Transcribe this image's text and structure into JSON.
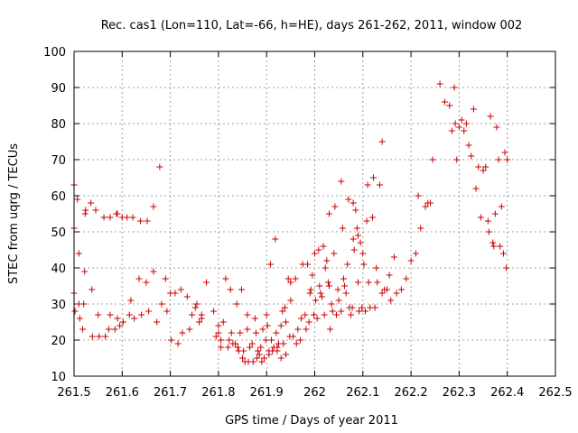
{
  "chart_data": {
    "type": "scatter",
    "title": "Rec. cas1 (Lon=110, Lat=-66, h=HE), days 261-262, 2011, window 002",
    "xlabel": "GPS time / Days of year 2011",
    "ylabel": "STEC from uqrg / TECUs",
    "xlim": [
      261.5,
      262.5
    ],
    "ylim": [
      10,
      100
    ],
    "xticks": [
      261.5,
      261.6,
      261.7,
      261.8,
      261.9,
      262.0,
      262.1,
      262.2,
      262.3,
      262.4,
      262.5
    ],
    "xtick_labels": [
      "261.5",
      "261.6",
      "261.7",
      "261.8",
      "261.9",
      "262",
      "262.1",
      "262.2",
      "262.3",
      "262.4",
      "262.5"
    ],
    "yticks": [
      10,
      20,
      30,
      40,
      50,
      60,
      70,
      80,
      90,
      100
    ],
    "ytick_labels": [
      "10",
      "20",
      "30",
      "40",
      "50",
      "60",
      "70",
      "80",
      "90",
      "100"
    ],
    "grid": true,
    "marker": "+",
    "color": "#cc0000",
    "series": [
      {
        "name": "STEC",
        "points": [
          [
            261.5,
            63
          ],
          [
            261.5,
            51
          ],
          [
            261.5,
            33
          ],
          [
            261.502,
            28
          ],
          [
            261.507,
            59
          ],
          [
            261.51,
            44
          ],
          [
            261.512,
            26
          ],
          [
            261.51,
            30
          ],
          [
            261.518,
            23
          ],
          [
            261.52,
            30
          ],
          [
            261.522,
            39
          ],
          [
            261.523,
            55
          ],
          [
            261.524,
            56
          ],
          [
            261.535,
            58
          ],
          [
            261.537,
            34
          ],
          [
            261.538,
            21
          ],
          [
            261.545,
            56
          ],
          [
            261.55,
            27
          ],
          [
            261.552,
            21
          ],
          [
            261.562,
            54
          ],
          [
            261.565,
            21
          ],
          [
            261.572,
            23
          ],
          [
            261.575,
            54
          ],
          [
            261.575,
            27
          ],
          [
            261.585,
            23
          ],
          [
            261.59,
            26
          ],
          [
            261.588,
            55
          ],
          [
            261.59,
            55
          ],
          [
            261.595,
            24
          ],
          [
            261.6,
            54
          ],
          [
            261.602,
            25
          ],
          [
            261.61,
            54
          ],
          [
            261.615,
            27
          ],
          [
            261.618,
            31
          ],
          [
            261.622,
            54
          ],
          [
            261.625,
            26
          ],
          [
            261.635,
            37
          ],
          [
            261.638,
            53
          ],
          [
            261.64,
            27
          ],
          [
            261.65,
            36
          ],
          [
            261.652,
            53
          ],
          [
            261.655,
            28
          ],
          [
            261.665,
            57
          ],
          [
            261.665,
            39
          ],
          [
            261.672,
            25
          ],
          [
            261.678,
            68
          ],
          [
            261.682,
            30
          ],
          [
            261.69,
            37
          ],
          [
            261.693,
            28
          ],
          [
            261.7,
            33
          ],
          [
            261.702,
            20
          ],
          [
            261.71,
            33
          ],
          [
            261.716,
            19
          ],
          [
            261.722,
            34
          ],
          [
            261.725,
            22
          ],
          [
            261.735,
            32
          ],
          [
            261.74,
            23
          ],
          [
            261.745,
            27
          ],
          [
            261.752,
            29
          ],
          [
            261.755,
            30
          ],
          [
            261.76,
            25
          ],
          [
            261.765,
            26
          ],
          [
            261.765,
            27
          ],
          [
            261.775,
            36
          ],
          [
            261.79,
            28
          ],
          [
            261.795,
            21
          ],
          [
            261.8,
            22
          ],
          [
            261.8,
            24
          ],
          [
            261.805,
            20
          ],
          [
            261.805,
            18
          ],
          [
            261.81,
            25
          ],
          [
            261.815,
            37
          ],
          [
            261.82,
            18
          ],
          [
            261.822,
            20
          ],
          [
            261.825,
            34
          ],
          [
            261.827,
            22
          ],
          [
            261.83,
            19
          ],
          [
            261.835,
            19
          ],
          [
            261.838,
            30
          ],
          [
            261.84,
            18
          ],
          [
            261.842,
            17
          ],
          [
            261.845,
            22
          ],
          [
            261.848,
            34
          ],
          [
            261.85,
            15
          ],
          [
            261.852,
            17
          ],
          [
            261.855,
            14
          ],
          [
            261.86,
            23
          ],
          [
            261.86,
            27
          ],
          [
            261.862,
            14
          ],
          [
            261.865,
            18
          ],
          [
            261.87,
            19
          ],
          [
            261.872,
            14
          ],
          [
            261.876,
            26
          ],
          [
            261.878,
            22
          ],
          [
            261.88,
            15
          ],
          [
            261.882,
            17
          ],
          [
            261.885,
            16
          ],
          [
            261.888,
            18
          ],
          [
            261.89,
            14
          ],
          [
            261.892,
            23
          ],
          [
            261.895,
            15
          ],
          [
            261.898,
            20
          ],
          [
            261.9,
            27
          ],
          [
            261.902,
            24
          ],
          [
            261.905,
            16
          ],
          [
            261.905,
            17
          ],
          [
            261.908,
            41
          ],
          [
            261.91,
            20
          ],
          [
            261.912,
            17
          ],
          [
            261.915,
            18
          ],
          [
            261.918,
            48
          ],
          [
            261.92,
            22
          ],
          [
            261.922,
            17
          ],
          [
            261.922,
            18
          ],
          [
            261.925,
            19
          ],
          [
            261.93,
            15
          ],
          [
            261.93,
            24
          ],
          [
            261.933,
            28
          ],
          [
            261.935,
            19
          ],
          [
            261.938,
            29
          ],
          [
            261.94,
            25
          ],
          [
            261.94,
            16
          ],
          [
            261.945,
            37
          ],
          [
            261.948,
            21
          ],
          [
            261.95,
            31
          ],
          [
            261.95,
            36
          ],
          [
            261.955,
            21
          ],
          [
            261.96,
            37
          ],
          [
            261.962,
            19
          ],
          [
            261.965,
            23
          ],
          [
            261.97,
            20
          ],
          [
            261.972,
            26
          ],
          [
            261.975,
            41
          ],
          [
            261.98,
            27
          ],
          [
            261.982,
            23
          ],
          [
            261.985,
            41
          ],
          [
            261.988,
            25
          ],
          [
            261.99,
            33
          ],
          [
            261.992,
            34
          ],
          [
            261.995,
            38
          ],
          [
            261.998,
            27
          ],
          [
            262.0,
            44
          ],
          [
            262.002,
            31
          ],
          [
            262.005,
            26
          ],
          [
            262.008,
            45
          ],
          [
            262.01,
            35
          ],
          [
            262.012,
            33
          ],
          [
            262.015,
            32
          ],
          [
            262.018,
            46
          ],
          [
            262.02,
            27
          ],
          [
            262.022,
            40
          ],
          [
            262.025,
            42
          ],
          [
            262.028,
            36
          ],
          [
            262.03,
            35
          ],
          [
            262.03,
            55
          ],
          [
            262.032,
            23
          ],
          [
            262.035,
            30
          ],
          [
            262.037,
            28
          ],
          [
            262.04,
            44
          ],
          [
            262.042,
            57
          ],
          [
            262.045,
            27
          ],
          [
            262.048,
            34
          ],
          [
            262.05,
            31
          ],
          [
            262.055,
            64
          ],
          [
            262.055,
            28
          ],
          [
            262.058,
            51
          ],
          [
            262.06,
            37
          ],
          [
            262.062,
            35
          ],
          [
            262.065,
            33
          ],
          [
            262.068,
            41
          ],
          [
            262.07,
            59
          ],
          [
            262.072,
            29
          ],
          [
            262.075,
            27
          ],
          [
            262.078,
            29
          ],
          [
            262.08,
            48
          ],
          [
            262.08,
            58
          ],
          [
            262.082,
            45
          ],
          [
            262.085,
            56
          ],
          [
            262.088,
            51
          ],
          [
            262.09,
            49
          ],
          [
            262.09,
            36
          ],
          [
            262.092,
            28
          ],
          [
            262.095,
            47
          ],
          [
            262.098,
            29
          ],
          [
            262.1,
            44
          ],
          [
            262.102,
            41
          ],
          [
            262.105,
            28
          ],
          [
            262.108,
            53
          ],
          [
            262.11,
            63
          ],
          [
            262.112,
            36
          ],
          [
            262.115,
            29
          ],
          [
            262.12,
            54
          ],
          [
            262.122,
            65
          ],
          [
            262.125,
            29
          ],
          [
            262.128,
            40
          ],
          [
            262.13,
            36
          ],
          [
            262.135,
            63
          ],
          [
            262.14,
            33
          ],
          [
            262.14,
            75
          ],
          [
            262.145,
            34
          ],
          [
            262.15,
            34
          ],
          [
            262.155,
            38
          ],
          [
            262.158,
            31
          ],
          [
            262.165,
            43
          ],
          [
            262.17,
            33
          ],
          [
            262.18,
            34
          ],
          [
            262.19,
            37
          ],
          [
            262.2,
            42
          ],
          [
            262.21,
            44
          ],
          [
            262.215,
            60
          ],
          [
            262.22,
            51
          ],
          [
            262.23,
            57
          ],
          [
            262.235,
            58
          ],
          [
            262.24,
            58
          ],
          [
            262.245,
            70
          ],
          [
            262.26,
            91
          ],
          [
            262.27,
            86
          ],
          [
            262.28,
            85
          ],
          [
            262.285,
            78
          ],
          [
            262.29,
            90
          ],
          [
            262.292,
            80
          ],
          [
            262.295,
            70
          ],
          [
            262.3,
            79
          ],
          [
            262.305,
            81
          ],
          [
            262.31,
            78
          ],
          [
            262.315,
            80
          ],
          [
            262.32,
            74
          ],
          [
            262.325,
            71
          ],
          [
            262.33,
            84
          ],
          [
            262.335,
            62
          ],
          [
            262.34,
            68
          ],
          [
            262.345,
            54
          ],
          [
            262.35,
            67
          ],
          [
            262.355,
            68
          ],
          [
            262.36,
            53
          ],
          [
            262.362,
            50
          ],
          [
            262.365,
            82
          ],
          [
            262.37,
            47
          ],
          [
            262.372,
            46
          ],
          [
            262.375,
            55
          ],
          [
            262.378,
            79
          ],
          [
            262.382,
            70
          ],
          [
            262.385,
            46
          ],
          [
            262.388,
            57
          ],
          [
            262.392,
            44
          ],
          [
            262.395,
            72
          ],
          [
            262.398,
            40
          ],
          [
            262.4,
            70
          ]
        ]
      }
    ]
  }
}
